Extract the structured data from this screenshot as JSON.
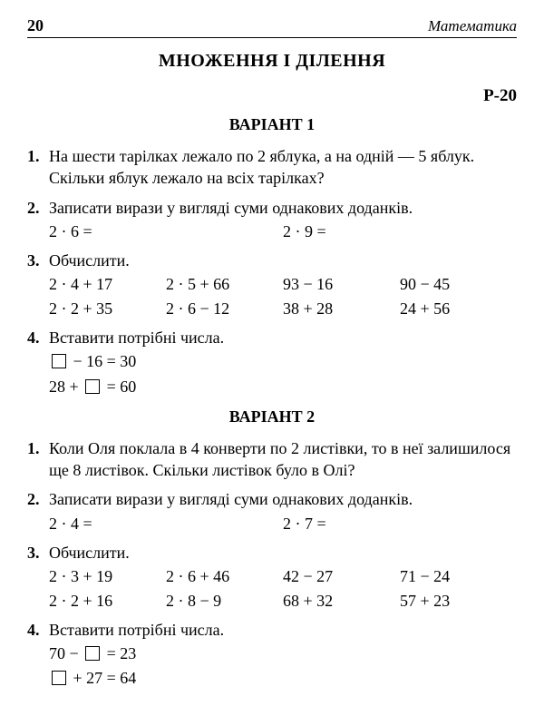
{
  "header": {
    "page_number": "20",
    "subject": "Математика"
  },
  "chapter_title": "МНОЖЕННЯ І ДІЛЕННЯ",
  "p_label": "Р-20",
  "variants": [
    {
      "title": "ВАРІАНТ 1",
      "problems": {
        "p1": {
          "num": "1.",
          "text": "На шести тарілках лежало по 2 яблука, а на одній — 5 яблук. Скільки яблук лежало на всіх тарілках?"
        },
        "p2": {
          "num": "2.",
          "text": "Записати вирази у вигляді суми однакових доданків.",
          "exprs": [
            "2 · 6 =",
            "2 · 9 ="
          ]
        },
        "p3": {
          "num": "3.",
          "text": "Обчислити.",
          "row1": [
            "2 · 4 + 17",
            "2 · 5 + 66",
            "93 − 16",
            "90 − 45"
          ],
          "row2": [
            "2 · 2 + 35",
            "2 · 6 − 12",
            "38 + 28",
            "24 + 56"
          ]
        },
        "p4": {
          "num": "4.",
          "text": "Вставити потрібні числа.",
          "line1_after": " − 16 = 30",
          "line2_before": "28 + ",
          "line2_after": " = 60"
        }
      }
    },
    {
      "title": "ВАРІАНТ 2",
      "problems": {
        "p1": {
          "num": "1.",
          "text": "Коли Оля поклала в 4 конверти по 2 листівки, то в неї залишилося ще 8 листівок. Скільки листівок було в Олі?"
        },
        "p2": {
          "num": "2.",
          "text": "Записати вирази у вигляді суми однакових доданків.",
          "exprs": [
            "2 · 4 =",
            "2 · 7 ="
          ]
        },
        "p3": {
          "num": "3.",
          "text": "Обчислити.",
          "row1": [
            "2 · 3 + 19",
            "2 · 6 + 46",
            "42 − 27",
            "71 − 24"
          ],
          "row2": [
            "2 · 2 + 16",
            "2 · 8 − 9",
            "68 + 32",
            "57 + 23"
          ]
        },
        "p4": {
          "num": "4.",
          "text": "Вставити потрібні числа.",
          "line1_before": "70 − ",
          "line1_after": " = 23",
          "line2_after": " + 27 = 64"
        }
      }
    }
  ]
}
